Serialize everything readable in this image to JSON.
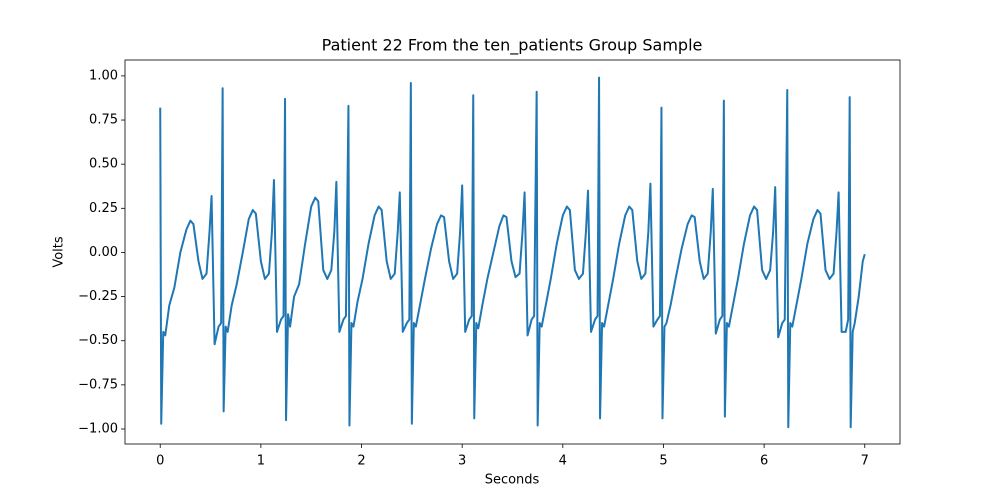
{
  "chart_data": {
    "type": "line",
    "title": "Patient 22 From the ten_patients Group Sample",
    "x_label": "Seconds",
    "y_label": "Volts",
    "color": "#1f77b4",
    "grid": false,
    "xlim": [
      -0.35,
      7.35
    ],
    "ylim": [
      -1.085,
      1.09
    ],
    "xticks": [
      0,
      1,
      2,
      3,
      4,
      5,
      6,
      7
    ],
    "yticks": [
      {
        "value": -1,
        "label": "−1.00"
      },
      {
        "value": -0.75,
        "label": "−0.75"
      },
      {
        "value": -0.5,
        "label": "−0.50"
      },
      {
        "value": -0.25,
        "label": "−0.25"
      },
      {
        "value": 0,
        "label": "0.00"
      },
      {
        "value": 0.25,
        "label": "0.25"
      },
      {
        "value": 0.5,
        "label": "0.50"
      },
      {
        "value": 0.75,
        "label": "0.75"
      },
      {
        "value": 1,
        "label": "1.00"
      }
    ],
    "x": [
      0,
      0.01,
      0.03,
      0.05,
      0.09,
      0.14,
      0.2,
      0.26,
      0.3,
      0.33,
      0.38,
      0.42,
      0.46,
      0.49,
      0.51,
      0.54,
      0.58,
      0.605,
      0.62,
      0.63,
      0.65,
      0.67,
      0.71,
      0.76,
      0.82,
      0.88,
      0.92,
      0.95,
      1.0,
      1.04,
      1.08,
      1.11,
      1.13,
      1.16,
      1.2,
      1.225,
      1.24,
      1.25,
      1.27,
      1.29,
      1.33,
      1.38,
      1.44,
      1.5,
      1.54,
      1.57,
      1.62,
      1.66,
      1.7,
      1.73,
      1.75,
      1.78,
      1.82,
      1.845,
      1.87,
      1.88,
      1.9,
      1.92,
      1.96,
      2.01,
      2.07,
      2.13,
      2.17,
      2.2,
      2.25,
      2.29,
      2.33,
      2.36,
      2.38,
      2.41,
      2.45,
      2.475,
      2.49,
      2.5,
      2.52,
      2.54,
      2.58,
      2.63,
      2.69,
      2.75,
      2.79,
      2.82,
      2.87,
      2.91,
      2.95,
      2.98,
      3.0,
      3.03,
      3.07,
      3.095,
      3.11,
      3.12,
      3.14,
      3.16,
      3.2,
      3.25,
      3.31,
      3.37,
      3.41,
      3.44,
      3.49,
      3.53,
      3.57,
      3.6,
      3.62,
      3.65,
      3.69,
      3.715,
      3.74,
      3.75,
      3.77,
      3.79,
      3.83,
      3.88,
      3.94,
      4.0,
      4.04,
      4.07,
      4.12,
      4.16,
      4.2,
      4.23,
      4.25,
      4.28,
      4.32,
      4.345,
      4.36,
      4.37,
      4.39,
      4.41,
      4.45,
      4.5,
      4.56,
      4.62,
      4.66,
      4.69,
      4.74,
      4.78,
      4.82,
      4.85,
      4.87,
      4.9,
      4.94,
      4.965,
      4.98,
      4.99,
      5.01,
      5.03,
      5.07,
      5.12,
      5.18,
      5.24,
      5.28,
      5.31,
      5.36,
      5.4,
      5.44,
      5.47,
      5.49,
      5.52,
      5.56,
      5.585,
      5.6,
      5.61,
      5.63,
      5.65,
      5.69,
      5.74,
      5.8,
      5.86,
      5.9,
      5.93,
      5.98,
      6.02,
      6.06,
      6.09,
      6.11,
      6.14,
      6.18,
      6.205,
      6.23,
      6.24,
      6.26,
      6.28,
      6.32,
      6.37,
      6.43,
      6.49,
      6.53,
      6.56,
      6.61,
      6.65,
      6.69,
      6.72,
      6.74,
      6.77,
      6.81,
      6.835,
      6.85,
      6.86,
      6.88,
      6.9,
      6.94,
      6.98,
      7.0
    ],
    "values": [
      0.82,
      -0.97,
      -0.45,
      -0.47,
      -0.3,
      -0.2,
      0.0,
      0.13,
      0.18,
      0.16,
      -0.05,
      -0.15,
      -0.12,
      0.12,
      0.32,
      -0.52,
      -0.42,
      -0.4,
      0.93,
      -0.9,
      -0.42,
      -0.45,
      -0.3,
      -0.18,
      0.0,
      0.19,
      0.24,
      0.22,
      -0.05,
      -0.15,
      -0.12,
      0.12,
      0.41,
      -0.45,
      -0.38,
      -0.36,
      0.87,
      -0.95,
      -0.35,
      -0.42,
      -0.25,
      -0.18,
      0.05,
      0.26,
      0.31,
      0.29,
      -0.1,
      -0.15,
      -0.1,
      0.12,
      0.4,
      -0.45,
      -0.38,
      -0.36,
      0.83,
      -0.98,
      -0.4,
      -0.42,
      -0.28,
      -0.15,
      0.05,
      0.21,
      0.26,
      0.24,
      -0.05,
      -0.15,
      -0.12,
      0.12,
      0.34,
      -0.45,
      -0.4,
      -0.38,
      0.96,
      -0.97,
      -0.4,
      -0.42,
      -0.3,
      -0.15,
      0.02,
      0.16,
      0.21,
      0.2,
      -0.05,
      -0.15,
      -0.12,
      0.12,
      0.38,
      -0.45,
      -0.38,
      -0.36,
      0.89,
      -0.94,
      -0.4,
      -0.43,
      -0.3,
      -0.15,
      0.0,
      0.15,
      0.21,
      0.2,
      -0.05,
      -0.14,
      -0.12,
      0.12,
      0.34,
      -0.47,
      -0.38,
      -0.36,
      0.91,
      -0.98,
      -0.4,
      -0.42,
      -0.3,
      -0.15,
      0.05,
      0.21,
      0.26,
      0.24,
      -0.1,
      -0.15,
      -0.12,
      0.12,
      0.35,
      -0.45,
      -0.38,
      -0.36,
      0.99,
      -0.94,
      -0.4,
      -0.42,
      -0.3,
      -0.15,
      0.05,
      0.21,
      0.26,
      0.24,
      -0.05,
      -0.15,
      -0.12,
      0.12,
      0.39,
      -0.42,
      -0.38,
      -0.36,
      0.82,
      -0.94,
      -0.42,
      -0.4,
      -0.3,
      -0.15,
      0.02,
      0.16,
      0.21,
      0.2,
      -0.05,
      -0.15,
      -0.12,
      0.12,
      0.36,
      -0.46,
      -0.38,
      -0.36,
      0.86,
      -0.93,
      -0.4,
      -0.42,
      -0.3,
      -0.15,
      0.05,
      0.21,
      0.26,
      0.24,
      -0.1,
      -0.15,
      -0.1,
      0.12,
      0.37,
      -0.48,
      -0.4,
      -0.38,
      0.92,
      -0.99,
      -0.4,
      -0.42,
      -0.3,
      -0.15,
      0.05,
      0.19,
      0.24,
      0.22,
      -0.1,
      -0.15,
      -0.12,
      0.12,
      0.34,
      -0.45,
      -0.45,
      -0.38,
      0.88,
      -0.99,
      -0.45,
      -0.4,
      -0.25,
      -0.05,
      -0.01
    ]
  }
}
